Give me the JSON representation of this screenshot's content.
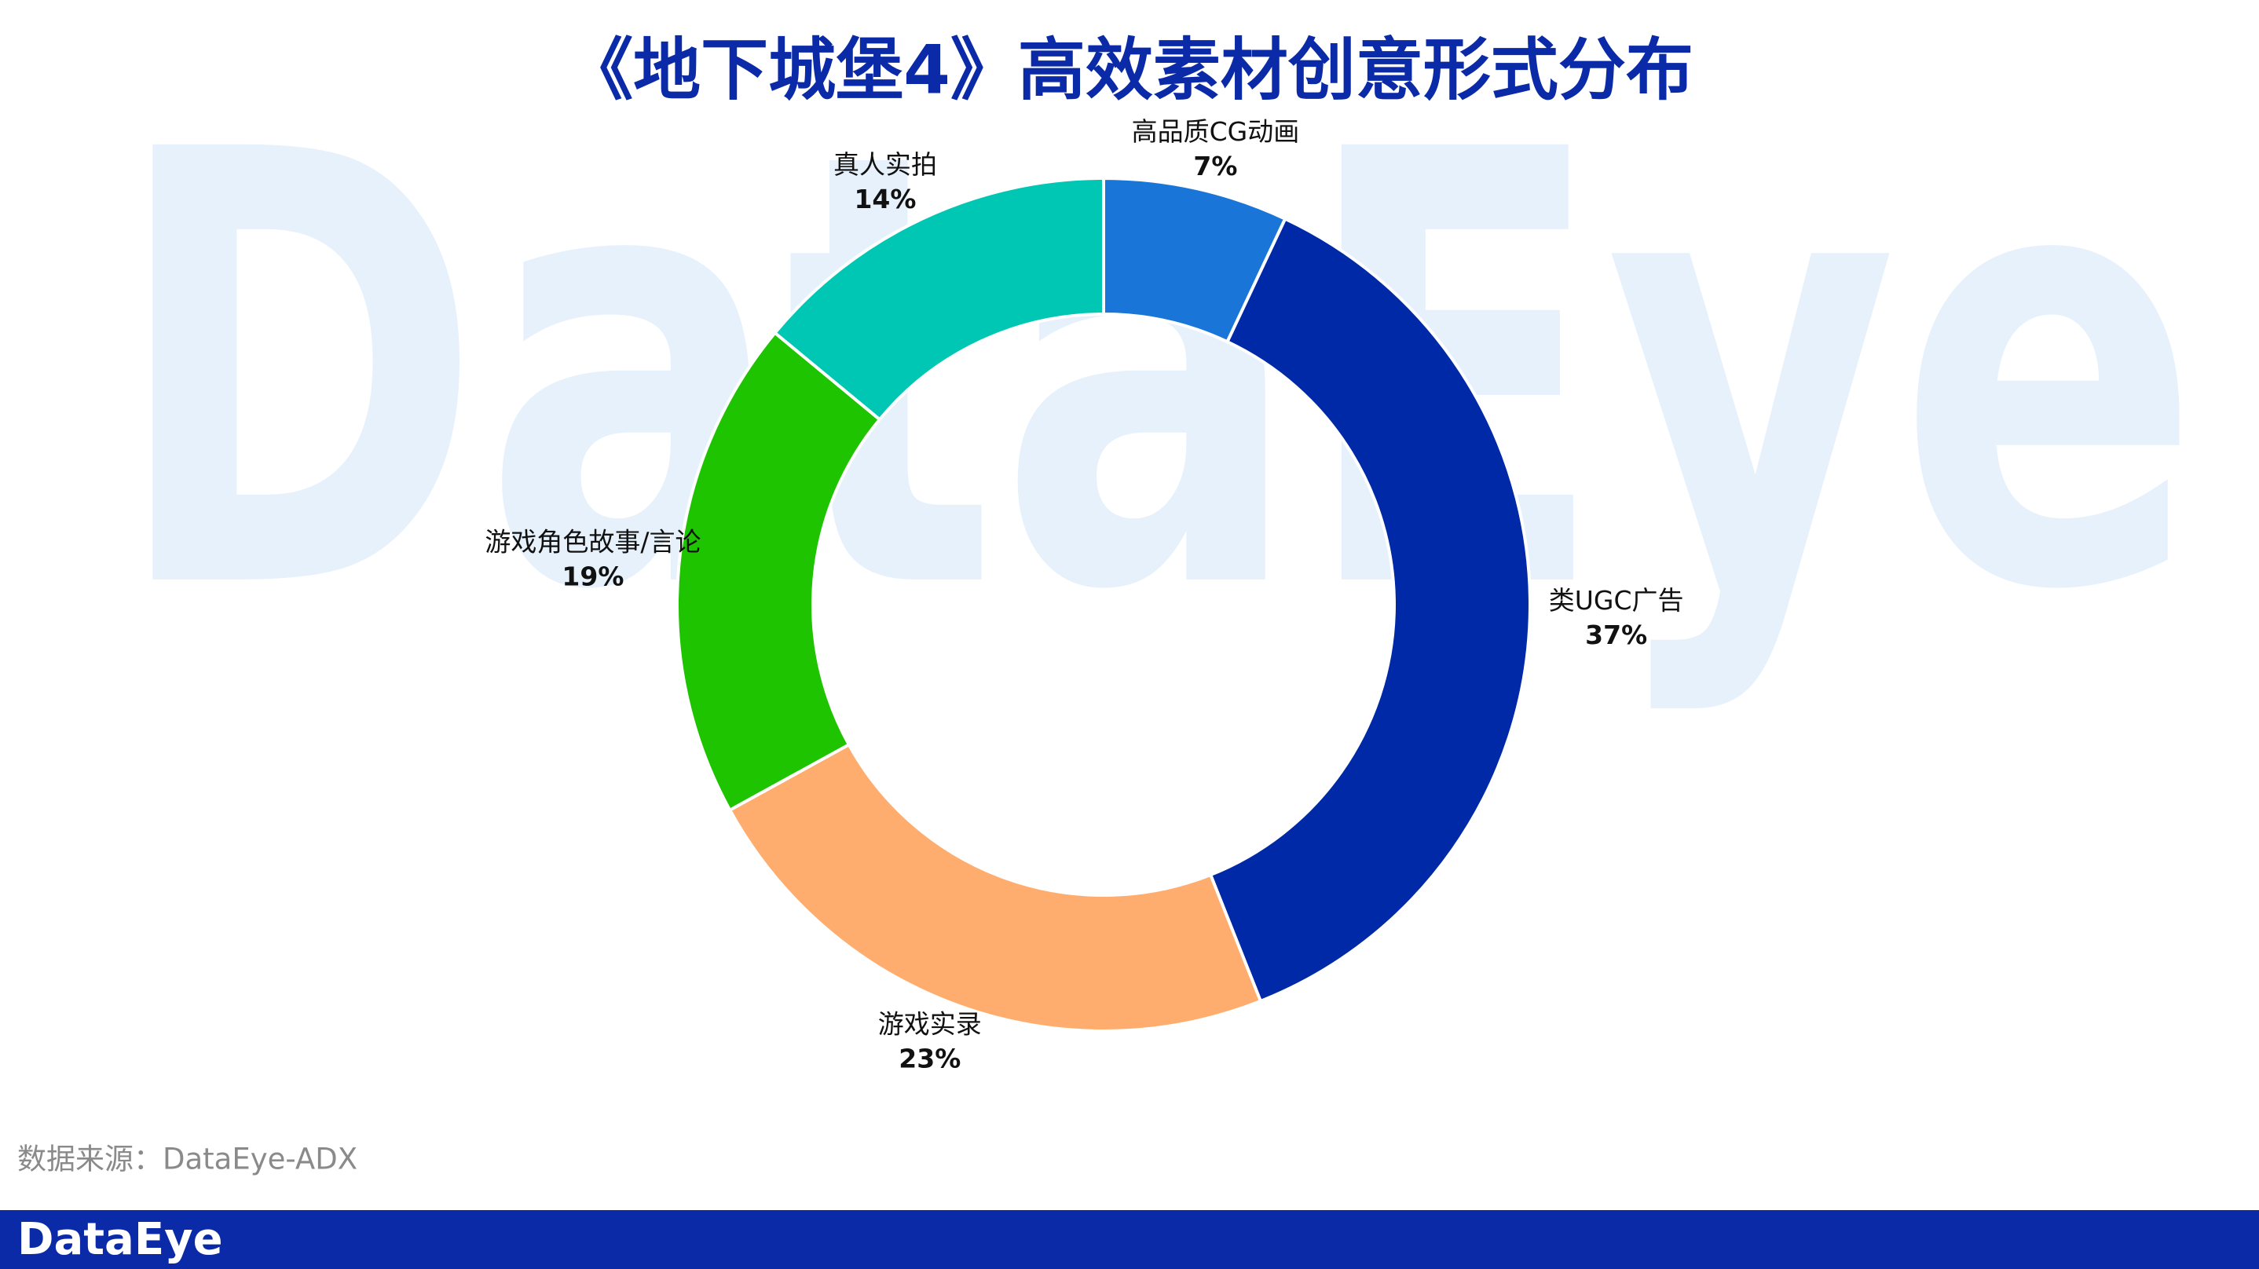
{
  "chart_data": {
    "type": "donut",
    "title": "《地下城堡4》高效素材创意形式分布",
    "categories": [
      "高品质CG动画",
      "类UGC广告",
      "游戏实录",
      "游戏角色故事/言论",
      "真人实拍"
    ],
    "values": [
      7,
      37,
      23,
      19,
      14
    ],
    "value_labels": [
      "7%",
      "37%",
      "23%",
      "19%",
      "14%"
    ],
    "colors": [
      "#1976d8",
      "#0029a8",
      "#ffad6e",
      "#1ec400",
      "#00c7b4"
    ]
  },
  "source": "数据来源：DataEye-ADX",
  "watermark": "DataEye",
  "footer_logo": "DataEye"
}
